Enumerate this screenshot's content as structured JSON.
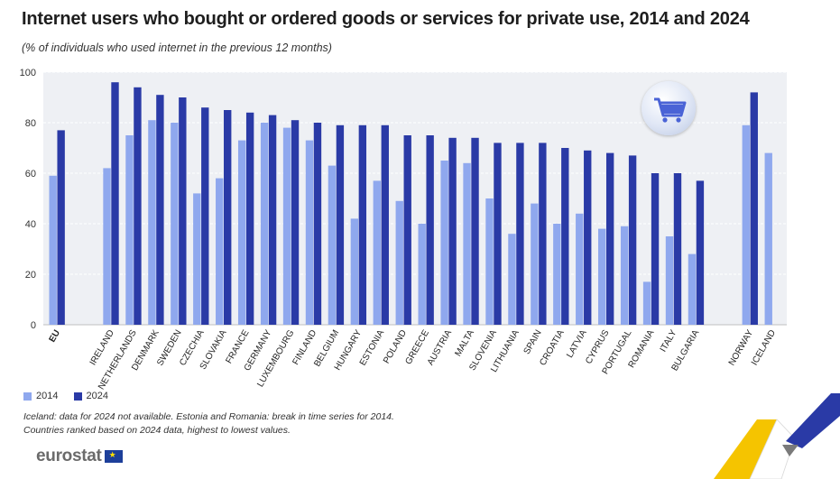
{
  "title": "Internet users who bought or ordered goods or services for private use, 2014 and 2024",
  "subtitle": "(% of individuals who used internet in the previous 12 months)",
  "legend": [
    {
      "label": "2014",
      "color": "#8fa8ee"
    },
    {
      "label": "2024",
      "color": "#2a3aa6"
    }
  ],
  "notes": [
    "Iceland: data for 2024 not available. Estonia and Romania: break in time series for 2014.",
    "Countries ranked based on 2024 data, highest to lowest values."
  ],
  "logo": {
    "text": "eurostat",
    "flag_glyph": "★"
  },
  "icon": "shopping-cart-icon",
  "chart_data": {
    "type": "bar",
    "ylim": [
      0,
      100
    ],
    "yticks": [
      0,
      20,
      40,
      60,
      80,
      100
    ],
    "grid": true,
    "categories": [
      "EU",
      "IRELAND",
      "NETHERLANDS",
      "DENMARK",
      "SWEDEN",
      "CZECHIA",
      "SLOVAKIA",
      "FRANCE",
      "GERMANY",
      "LUXEMBOURG",
      "FINLAND",
      "BELGIUM",
      "HUNGARY",
      "ESTONIA",
      "POLAND",
      "GREECE",
      "AUSTRIA",
      "MALTA",
      "SLOVENIA",
      "LITHUANIA",
      "SPAIN",
      "CROATIA",
      "LATVIA",
      "CYPRUS",
      "PORTUGAL",
      "ROMANIA",
      "ITALY",
      "BULGARIA",
      "NORWAY",
      "ICELAND"
    ],
    "groups": [
      [
        0
      ],
      [
        1,
        27
      ],
      [
        28,
        29
      ]
    ],
    "bold_categories": [
      "EU"
    ],
    "series": [
      {
        "name": "2014",
        "color": "#8fa8ee",
        "values": [
          59,
          62,
          75,
          81,
          80,
          52,
          58,
          73,
          80,
          78,
          73,
          63,
          42,
          57,
          49,
          40,
          65,
          64,
          50,
          36,
          48,
          40,
          44,
          38,
          39,
          17,
          35,
          28,
          79,
          68
        ]
      },
      {
        "name": "2024",
        "color": "#2a3aa6",
        "values": [
          77,
          96,
          94,
          91,
          90,
          86,
          85,
          84,
          83,
          81,
          80,
          79,
          79,
          79,
          75,
          75,
          74,
          74,
          72,
          72,
          72,
          70,
          69,
          68,
          67,
          60,
          60,
          57,
          92,
          null
        ]
      }
    ]
  }
}
